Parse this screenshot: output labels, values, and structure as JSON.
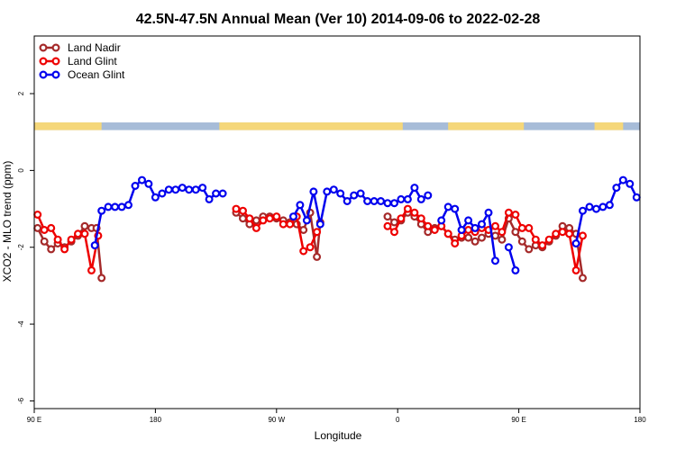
{
  "chart_data": {
    "type": "line",
    "title": "42.5N-47.5N Annual Mean (Ver 10)   2014-09-06 to 2022-02-28",
    "xlabel": "Longitude",
    "ylabel": "XCO2 - MLO trend (ppm)",
    "xlim": [
      90,
      450
    ],
    "ylim": [
      -6.2,
      3.5
    ],
    "x_ticks": [
      {
        "value": 90,
        "label": "90 E"
      },
      {
        "value": 162,
        "label": "180"
      },
      {
        "value": 234,
        "label": "90 W"
      },
      {
        "value": 306,
        "label": "0"
      },
      {
        "value": 378,
        "label": "90 E"
      },
      {
        "value": 450,
        "label": "180"
      }
    ],
    "y_ticks": [
      {
        "value": 2,
        "label": "2"
      },
      {
        "value": 0,
        "label": "0"
      },
      {
        "value": -2,
        "label": "-2"
      },
      {
        "value": -4,
        "label": "-4"
      },
      {
        "value": -6,
        "label": "-6"
      }
    ],
    "legend_position": "top-left",
    "land_ocean_bar": {
      "y_range": [
        1.05,
        1.25
      ],
      "land_color": "#f5d77a",
      "ocean_color": "#a7bcd8",
      "land_segments": [
        [
          90,
          130
        ],
        [
          200,
          309
        ],
        [
          336,
          381
        ],
        [
          423,
          440
        ]
      ]
    },
    "series": [
      {
        "name": "Land Nadir",
        "color": "#a52a2a",
        "segments": [
          [
            [
              92,
              -1.5
            ],
            [
              96,
              -1.85
            ],
            [
              100,
              -2.05
            ],
            [
              104,
              -1.9
            ],
            [
              108,
              -2.0
            ],
            [
              112,
              -1.85
            ],
            [
              116,
              -1.7
            ],
            [
              120,
              -1.45
            ],
            [
              124,
              -1.5
            ],
            [
              127,
              -1.5
            ],
            [
              130,
              -2.8
            ]
          ],
          [
            [
              210,
              -1.1
            ],
            [
              214,
              -1.25
            ],
            [
              218,
              -1.4
            ],
            [
              222,
              -1.3
            ],
            [
              226,
              -1.2
            ],
            [
              230,
              -1.2
            ],
            [
              234,
              -1.25
            ],
            [
              238,
              -1.3
            ],
            [
              242,
              -1.35
            ],
            [
              246,
              -1.4
            ],
            [
              250,
              -1.55
            ],
            [
              254,
              -1.1
            ],
            [
              258,
              -2.25
            ],
            [
              260,
              -1.35
            ]
          ],
          [
            [
              300,
              -1.2
            ],
            [
              304,
              -1.35
            ],
            [
              308,
              -1.3
            ],
            [
              312,
              -1.1
            ],
            [
              316,
              -1.2
            ],
            [
              320,
              -1.4
            ],
            [
              324,
              -1.6
            ],
            [
              328,
              -1.5
            ],
            [
              332,
              -1.45
            ],
            [
              336,
              -1.65
            ],
            [
              340,
              -1.8
            ],
            [
              344,
              -1.75
            ],
            [
              348,
              -1.75
            ],
            [
              352,
              -1.85
            ],
            [
              356,
              -1.75
            ],
            [
              360,
              -1.65
            ],
            [
              364,
              -1.7
            ],
            [
              368,
              -1.8
            ],
            [
              372,
              -1.25
            ],
            [
              376,
              -1.6
            ],
            [
              380,
              -1.85
            ],
            [
              384,
              -2.05
            ],
            [
              388,
              -1.95
            ],
            [
              392,
              -2.0
            ],
            [
              396,
              -1.85
            ],
            [
              400,
              -1.7
            ],
            [
              404,
              -1.45
            ],
            [
              408,
              -1.5
            ],
            [
              412,
              -1.65
            ],
            [
              416,
              -2.8
            ]
          ]
        ]
      },
      {
        "name": "Land Glint",
        "color": "#ee0000",
        "segments": [
          [
            [
              92,
              -1.15
            ],
            [
              96,
              -1.55
            ],
            [
              100,
              -1.5
            ],
            [
              104,
              -1.8
            ],
            [
              108,
              -2.05
            ],
            [
              112,
              -1.8
            ],
            [
              116,
              -1.65
            ],
            [
              120,
              -1.65
            ],
            [
              124,
              -2.6
            ],
            [
              128,
              -1.7
            ]
          ],
          [
            [
              210,
              -1.0
            ],
            [
              214,
              -1.05
            ],
            [
              218,
              -1.25
            ],
            [
              222,
              -1.5
            ],
            [
              226,
              -1.3
            ],
            [
              230,
              -1.25
            ],
            [
              234,
              -1.2
            ],
            [
              238,
              -1.4
            ],
            [
              242,
              -1.4
            ],
            [
              246,
              -1.2
            ],
            [
              250,
              -2.1
            ],
            [
              254,
              -2.0
            ],
            [
              258,
              -1.6
            ]
          ],
          [
            [
              300,
              -1.45
            ],
            [
              304,
              -1.6
            ],
            [
              308,
              -1.25
            ],
            [
              312,
              -1.0
            ],
            [
              316,
              -1.1
            ],
            [
              320,
              -1.25
            ],
            [
              324,
              -1.45
            ],
            [
              328,
              -1.55
            ],
            [
              332,
              -1.45
            ],
            [
              336,
              -1.65
            ],
            [
              340,
              -1.9
            ],
            [
              344,
              -1.7
            ],
            [
              348,
              -1.55
            ],
            [
              352,
              -1.6
            ],
            [
              356,
              -1.5
            ],
            [
              360,
              -1.55
            ],
            [
              364,
              -1.45
            ],
            [
              368,
              -1.6
            ],
            [
              372,
              -1.1
            ],
            [
              376,
              -1.15
            ],
            [
              380,
              -1.5
            ],
            [
              384,
              -1.5
            ],
            [
              388,
              -1.8
            ],
            [
              392,
              -1.95
            ],
            [
              396,
              -1.8
            ],
            [
              400,
              -1.65
            ],
            [
              404,
              -1.6
            ],
            [
              408,
              -1.65
            ],
            [
              412,
              -2.6
            ],
            [
              416,
              -1.7
            ]
          ]
        ]
      },
      {
        "name": "Ocean Glint",
        "color": "#0000ee",
        "segments": [
          [
            [
              126,
              -1.95
            ],
            [
              130,
              -1.05
            ],
            [
              134,
              -0.95
            ],
            [
              138,
              -0.95
            ],
            [
              142,
              -0.95
            ],
            [
              146,
              -0.9
            ],
            [
              150,
              -0.4
            ],
            [
              154,
              -0.25
            ],
            [
              158,
              -0.35
            ],
            [
              162,
              -0.7
            ],
            [
              166,
              -0.6
            ],
            [
              170,
              -0.5
            ],
            [
              174,
              -0.5
            ],
            [
              178,
              -0.45
            ],
            [
              182,
              -0.5
            ],
            [
              186,
              -0.5
            ],
            [
              190,
              -0.45
            ],
            [
              194,
              -0.75
            ],
            [
              198,
              -0.6
            ],
            [
              202,
              -0.6
            ]
          ],
          [
            [
              244,
              -1.2
            ],
            [
              248,
              -0.9
            ],
            [
              252,
              -1.3
            ],
            [
              256,
              -0.55
            ],
            [
              260,
              -1.4
            ],
            [
              264,
              -0.55
            ],
            [
              268,
              -0.5
            ],
            [
              272,
              -0.6
            ],
            [
              276,
              -0.8
            ],
            [
              280,
              -0.65
            ],
            [
              284,
              -0.6
            ],
            [
              288,
              -0.8
            ],
            [
              292,
              -0.8
            ],
            [
              296,
              -0.8
            ],
            [
              300,
              -0.85
            ],
            [
              304,
              -0.85
            ],
            [
              308,
              -0.75
            ],
            [
              312,
              -0.75
            ],
            [
              316,
              -0.45
            ],
            [
              320,
              -0.75
            ],
            [
              324,
              -0.65
            ]
          ],
          [
            [
              332,
              -1.3
            ],
            [
              336,
              -0.95
            ],
            [
              340,
              -1.0
            ],
            [
              344,
              -1.55
            ],
            [
              348,
              -1.3
            ],
            [
              352,
              -1.5
            ],
            [
              356,
              -1.4
            ],
            [
              360,
              -1.1
            ],
            [
              364,
              -2.35
            ]
          ],
          [
            [
              372,
              -2.0
            ],
            [
              376,
              -2.6
            ]
          ],
          [
            [
              412,
              -1.9
            ],
            [
              416,
              -1.05
            ],
            [
              420,
              -0.95
            ],
            [
              424,
              -1.0
            ],
            [
              428,
              -0.95
            ],
            [
              432,
              -0.9
            ],
            [
              436,
              -0.45
            ],
            [
              440,
              -0.25
            ],
            [
              444,
              -0.35
            ],
            [
              448,
              -0.7
            ]
          ]
        ]
      }
    ]
  }
}
